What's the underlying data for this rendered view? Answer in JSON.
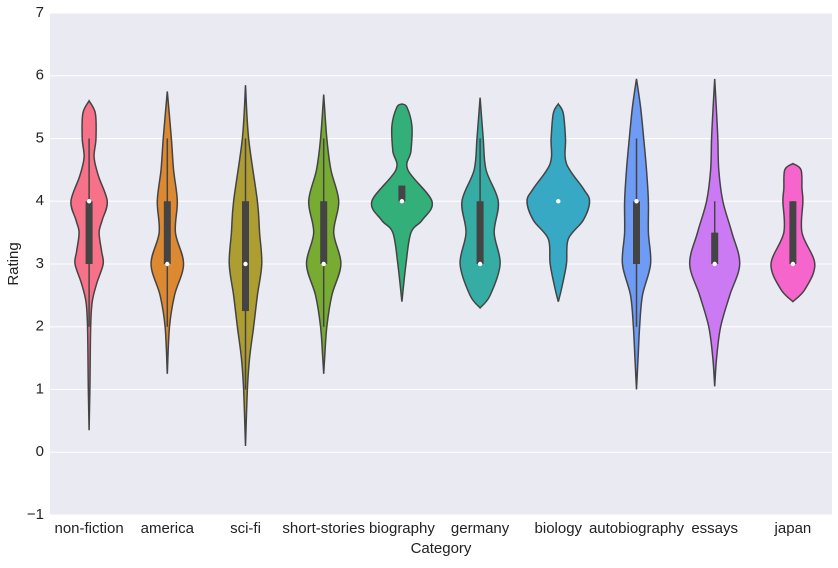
{
  "chart_data": {
    "type": "violin",
    "x_label": "Category",
    "y_label": "Rating",
    "categories": [
      "non-fiction",
      "america",
      "sci-fi",
      "short-stories",
      "biography",
      "germany",
      "biology",
      "autobiography",
      "essays",
      "japan"
    ],
    "ylim": [
      -1,
      7
    ],
    "yticks": [
      {
        "value": -1,
        "label": "−1"
      },
      0,
      1,
      2,
      3,
      4,
      5,
      6,
      7
    ],
    "grid": true,
    "series": [
      {
        "color": "#f77189",
        "violin_y": [
          5.6,
          5.4,
          5.0,
          4.7,
          4.4,
          4.0,
          3.7,
          3.5,
          3.2,
          3.0,
          2.7,
          2.4,
          2.0,
          1.0,
          0.35
        ],
        "violin_width": [
          0,
          0.2,
          0.22,
          0.16,
          0.3,
          0.58,
          0.42,
          0.32,
          0.4,
          0.45,
          0.25,
          0.1,
          0.05,
          0.025,
          0
        ],
        "q1": 3,
        "median": 4,
        "q3": 4,
        "whisker_low": 2,
        "whisker_high": 5
      },
      {
        "color": "#dc8932",
        "violin_y": [
          5.75,
          5.0,
          4.5,
          4.0,
          3.5,
          3.0,
          2.5,
          2.0,
          1.25
        ],
        "violin_width": [
          0,
          0.13,
          0.2,
          0.32,
          0.26,
          0.52,
          0.23,
          0.07,
          0
        ],
        "q1": 3,
        "median": 3,
        "q3": 4,
        "whisker_low": 2,
        "whisker_high": 5
      },
      {
        "color": "#ae9d31",
        "violin_y": [
          5.85,
          5.0,
          4.0,
          3.5,
          3.0,
          2.5,
          2.0,
          1.5,
          1.0,
          0.1
        ],
        "violin_width": [
          0,
          0.1,
          0.38,
          0.45,
          0.52,
          0.38,
          0.26,
          0.13,
          0.06,
          0
        ],
        "q1": 2.25,
        "median": 3,
        "q3": 4,
        "whisker_low": 1,
        "whisker_high": 5
      },
      {
        "color": "#77ab31",
        "violin_y": [
          5.7,
          5.0,
          4.5,
          4.0,
          3.5,
          3.0,
          2.5,
          2.0,
          1.5,
          1.25
        ],
        "violin_width": [
          0,
          0.1,
          0.23,
          0.48,
          0.32,
          0.55,
          0.26,
          0.1,
          0.03,
          0
        ],
        "q1": 3,
        "median": 3,
        "q3": 4,
        "whisker_low": 2,
        "whisker_high": 5
      },
      {
        "color": "#33b07a",
        "violin_y": [
          5.55,
          5.5,
          5.2,
          4.8,
          4.5,
          4.0,
          3.7,
          3.5,
          3.0,
          2.4
        ],
        "violin_width": [
          0,
          0.16,
          0.32,
          0.29,
          0.19,
          0.96,
          0.65,
          0.29,
          0.13,
          0
        ],
        "q1": 4,
        "median": 4,
        "q3": 4.25,
        "whisker_low": 4,
        "whisker_high": 4.25
      },
      {
        "color": "#36ada4",
        "violin_y": [
          5.65,
          5.0,
          4.5,
          4.0,
          3.5,
          3.0,
          2.5,
          2.3
        ],
        "violin_width": [
          0,
          0.1,
          0.19,
          0.58,
          0.45,
          0.64,
          0.32,
          0
        ],
        "q1": 3,
        "median": 3,
        "q3": 4,
        "whisker_low": 3,
        "whisker_high": 5
      },
      {
        "color": "#38a9c5",
        "violin_y": [
          5.55,
          5.4,
          5.0,
          4.6,
          4.2,
          4.0,
          3.7,
          3.4,
          3.0,
          2.6,
          2.4
        ],
        "violin_width": [
          0,
          0.16,
          0.23,
          0.26,
          0.8,
          1.0,
          0.8,
          0.32,
          0.26,
          0.1,
          0
        ],
        "q1": 4,
        "median": 4,
        "q3": 4,
        "whisker_low": 4,
        "whisker_high": 4
      },
      {
        "color": "#6e9bf4",
        "violin_y": [
          5.95,
          5.5,
          5.0,
          4.5,
          4.0,
          3.5,
          3.0,
          2.5,
          2.0,
          1.5,
          1.0
        ],
        "violin_width": [
          0,
          0.13,
          0.23,
          0.32,
          0.38,
          0.38,
          0.45,
          0.19,
          0.1,
          0.05,
          0
        ],
        "q1": 3,
        "median": 4,
        "q3": 4,
        "whisker_low": 2,
        "whisker_high": 5
      },
      {
        "color": "#cc7af4",
        "violin_y": [
          5.95,
          5.5,
          5.0,
          4.5,
          4.0,
          3.5,
          3.0,
          2.5,
          2.0,
          1.5,
          1.05
        ],
        "violin_width": [
          0,
          0.05,
          0.1,
          0.13,
          0.26,
          0.55,
          0.8,
          0.48,
          0.19,
          0.06,
          0
        ],
        "q1": 3,
        "median": 3,
        "q3": 3.5,
        "whisker_low": 3,
        "whisker_high": 4
      },
      {
        "color": "#f565cc",
        "violin_y": [
          4.6,
          4.5,
          4.2,
          4.0,
          3.5,
          3.0,
          2.6,
          2.4
        ],
        "violin_width": [
          0,
          0.26,
          0.29,
          0.32,
          0.29,
          0.7,
          0.39,
          0
        ],
        "q1": 3,
        "median": 3,
        "q3": 4,
        "whisker_low": 3,
        "whisker_high": 4
      }
    ]
  }
}
